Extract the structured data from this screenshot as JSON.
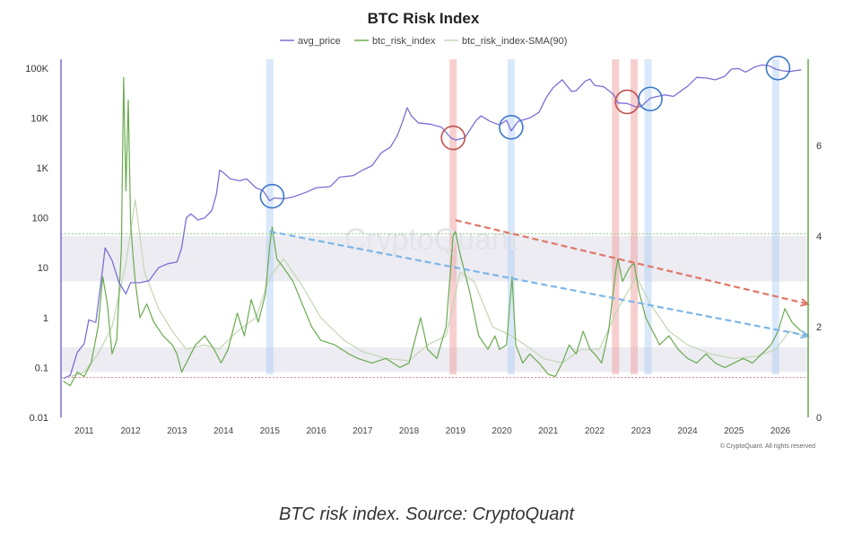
{
  "caption": "BTC risk index. Source: CryptoQuant",
  "chart_data": {
    "type": "line",
    "title": "BTC Risk Index",
    "legend": [
      {
        "name": "avg_price",
        "color": "#7b6fd6"
      },
      {
        "name": "btc_risk_index",
        "color": "#6aaa4f"
      },
      {
        "name": "btc_risk_index-SMA(90)",
        "color": "#c9d9bd"
      }
    ],
    "legend_placement": "top-center",
    "watermark": "CryptoQuant",
    "copyright": "© CryptoQuant. All rights reserved",
    "x_ticks": [
      "2011",
      "2012",
      "2013",
      "2014",
      "2015",
      "2016",
      "2017",
      "2018",
      "2019",
      "2020",
      "2021",
      "2022",
      "2023",
      "2024",
      "2025",
      "2026"
    ],
    "xlim": [
      2010.5,
      2026.6
    ],
    "y_left": {
      "scale": "log",
      "range": [
        0.01,
        150000
      ],
      "ticks": [
        0.01,
        0.1,
        1,
        10,
        100,
        1000,
        10000,
        100000
      ],
      "tick_labels": [
        "0.01",
        "0.1",
        "1",
        "10",
        "100",
        "1K",
        "10K",
        "100K"
      ]
    },
    "y_right": {
      "scale": "linear",
      "range": [
        0,
        7.9
      ],
      "ticks": [
        0,
        2,
        4,
        6
      ],
      "tick_labels": [
        "0",
        "2",
        "4",
        "6"
      ]
    },
    "bands": [
      {
        "y_from": 1.0,
        "y_to": 1.55
      },
      {
        "y_from": 3.0,
        "y_to": 4.0
      }
    ],
    "threshold_lines": [
      {
        "y": 0.88,
        "color": "#d98a8a"
      },
      {
        "y": 4.05,
        "color": "#9cc98f"
      }
    ],
    "vertical_highlights": [
      {
        "x": 2015.0,
        "color": "blue"
      },
      {
        "x": 2018.95,
        "color": "red"
      },
      {
        "x": 2020.2,
        "color": "blue"
      },
      {
        "x": 2022.45,
        "color": "red"
      },
      {
        "x": 2022.85,
        "color": "red"
      },
      {
        "x": 2023.15,
        "color": "blue"
      },
      {
        "x": 2025.9,
        "color": "blue"
      }
    ],
    "circles": [
      {
        "x": 2015.05,
        "price": 270,
        "color": "blue"
      },
      {
        "x": 2018.95,
        "price": 4000,
        "color": "red"
      },
      {
        "x": 2020.2,
        "price": 6500,
        "color": "blue"
      },
      {
        "x": 2022.7,
        "price": 21000,
        "color": "red"
      },
      {
        "x": 2023.2,
        "price": 24000,
        "color": "blue"
      },
      {
        "x": 2025.95,
        "price": 100000,
        "color": "blue"
      }
    ],
    "trend_lines": [
      {
        "color": "blue",
        "from": [
          2015.0,
          4.1
        ],
        "to": [
          2026.6,
          1.8
        ]
      },
      {
        "color": "red",
        "from": [
          2019.0,
          4.35
        ],
        "to": [
          2026.6,
          2.5
        ]
      }
    ],
    "series": [
      {
        "name": "avg_price",
        "axis": "left",
        "points": [
          [
            2010.55,
            0.06
          ],
          [
            2010.7,
            0.07
          ],
          [
            2010.85,
            0.2
          ],
          [
            2011.0,
            0.3
          ],
          [
            2011.1,
            0.9
          ],
          [
            2011.25,
            0.8
          ],
          [
            2011.4,
            10
          ],
          [
            2011.45,
            25
          ],
          [
            2011.6,
            14
          ],
          [
            2011.75,
            5
          ],
          [
            2011.9,
            3
          ],
          [
            2012.0,
            5
          ],
          [
            2012.2,
            5
          ],
          [
            2012.4,
            5.5
          ],
          [
            2012.6,
            10
          ],
          [
            2012.8,
            12
          ],
          [
            2013.0,
            13
          ],
          [
            2013.1,
            25
          ],
          [
            2013.2,
            100
          ],
          [
            2013.3,
            120
          ],
          [
            2013.45,
            90
          ],
          [
            2013.6,
            100
          ],
          [
            2013.75,
            140
          ],
          [
            2013.85,
            300
          ],
          [
            2013.92,
            900
          ],
          [
            2014.0,
            800
          ],
          [
            2014.15,
            600
          ],
          [
            2014.35,
            550
          ],
          [
            2014.5,
            600
          ],
          [
            2014.7,
            400
          ],
          [
            2014.85,
            350
          ],
          [
            2015.0,
            220
          ],
          [
            2015.1,
            250
          ],
          [
            2015.3,
            240
          ],
          [
            2015.5,
            260
          ],
          [
            2015.8,
            330
          ],
          [
            2016.0,
            400
          ],
          [
            2016.3,
            420
          ],
          [
            2016.5,
            650
          ],
          [
            2016.8,
            700
          ],
          [
            2017.0,
            900
          ],
          [
            2017.2,
            1100
          ],
          [
            2017.4,
            2000
          ],
          [
            2017.6,
            2600
          ],
          [
            2017.75,
            4500
          ],
          [
            2017.85,
            8000
          ],
          [
            2017.96,
            16000
          ],
          [
            2018.05,
            11000
          ],
          [
            2018.2,
            8000
          ],
          [
            2018.45,
            7500
          ],
          [
            2018.7,
            6500
          ],
          [
            2018.9,
            4000
          ],
          [
            2019.0,
            3600
          ],
          [
            2019.2,
            4000
          ],
          [
            2019.45,
            9000
          ],
          [
            2019.55,
            11000
          ],
          [
            2019.75,
            8500
          ],
          [
            2019.95,
            7200
          ],
          [
            2020.1,
            9000
          ],
          [
            2020.2,
            5500
          ],
          [
            2020.35,
            8500
          ],
          [
            2020.6,
            10000
          ],
          [
            2020.8,
            13000
          ],
          [
            2020.95,
            25000
          ],
          [
            2021.1,
            40000
          ],
          [
            2021.3,
            58000
          ],
          [
            2021.5,
            34000
          ],
          [
            2021.6,
            35000
          ],
          [
            2021.8,
            55000
          ],
          [
            2021.9,
            60000
          ],
          [
            2022.0,
            45000
          ],
          [
            2022.2,
            42000
          ],
          [
            2022.4,
            30000
          ],
          [
            2022.5,
            20000
          ],
          [
            2022.7,
            19500
          ],
          [
            2022.9,
            16500
          ],
          [
            2023.0,
            17000
          ],
          [
            2023.2,
            25000
          ],
          [
            2023.5,
            29000
          ],
          [
            2023.7,
            27000
          ],
          [
            2023.9,
            37000
          ],
          [
            2024.0,
            43000
          ],
          [
            2024.2,
            65000
          ],
          [
            2024.4,
            63000
          ],
          [
            2024.6,
            58000
          ],
          [
            2024.8,
            68000
          ],
          [
            2024.95,
            95000
          ],
          [
            2025.1,
            98000
          ],
          [
            2025.25,
            83000
          ],
          [
            2025.45,
            105000
          ],
          [
            2025.6,
            115000
          ],
          [
            2025.75,
            112000
          ],
          [
            2025.9,
            95000
          ],
          [
            2026.05,
            88000
          ],
          [
            2026.2,
            85000
          ],
          [
            2026.45,
            92000
          ]
        ]
      },
      {
        "name": "btc_risk_index",
        "axis": "right",
        "points": [
          [
            2010.55,
            0.8
          ],
          [
            2010.7,
            0.7
          ],
          [
            2010.85,
            1.0
          ],
          [
            2011.0,
            0.9
          ],
          [
            2011.15,
            1.2
          ],
          [
            2011.3,
            2.0
          ],
          [
            2011.4,
            3.1
          ],
          [
            2011.5,
            2.5
          ],
          [
            2011.6,
            1.4
          ],
          [
            2011.7,
            1.7
          ],
          [
            2011.8,
            3.7
          ],
          [
            2011.85,
            7.5
          ],
          [
            2011.9,
            5.0
          ],
          [
            2011.95,
            7.0
          ],
          [
            2012.0,
            4.3
          ],
          [
            2012.05,
            3.6
          ],
          [
            2012.1,
            3.0
          ],
          [
            2012.2,
            2.2
          ],
          [
            2012.35,
            2.5
          ],
          [
            2012.5,
            2.1
          ],
          [
            2012.7,
            1.8
          ],
          [
            2012.9,
            1.6
          ],
          [
            2013.0,
            1.4
          ],
          [
            2013.1,
            1.0
          ],
          [
            2013.25,
            1.3
          ],
          [
            2013.4,
            1.6
          ],
          [
            2013.6,
            1.8
          ],
          [
            2013.8,
            1.5
          ],
          [
            2013.95,
            1.2
          ],
          [
            2014.1,
            1.5
          ],
          [
            2014.3,
            2.3
          ],
          [
            2014.45,
            1.8
          ],
          [
            2014.6,
            2.6
          ],
          [
            2014.75,
            2.1
          ],
          [
            2014.9,
            2.7
          ],
          [
            2015.0,
            3.8
          ],
          [
            2015.05,
            4.2
          ],
          [
            2015.15,
            3.5
          ],
          [
            2015.3,
            3.3
          ],
          [
            2015.5,
            3.0
          ],
          [
            2015.7,
            2.5
          ],
          [
            2015.9,
            2.0
          ],
          [
            2016.1,
            1.7
          ],
          [
            2016.4,
            1.6
          ],
          [
            2016.7,
            1.4
          ],
          [
            2016.9,
            1.3
          ],
          [
            2017.2,
            1.2
          ],
          [
            2017.5,
            1.3
          ],
          [
            2017.8,
            1.1
          ],
          [
            2018.0,
            1.2
          ],
          [
            2018.1,
            1.6
          ],
          [
            2018.25,
            2.2
          ],
          [
            2018.4,
            1.5
          ],
          [
            2018.6,
            1.3
          ],
          [
            2018.8,
            2.0
          ],
          [
            2018.95,
            4.0
          ],
          [
            2019.0,
            4.1
          ],
          [
            2019.1,
            3.6
          ],
          [
            2019.3,
            2.8
          ],
          [
            2019.5,
            1.8
          ],
          [
            2019.7,
            1.5
          ],
          [
            2019.85,
            1.8
          ],
          [
            2019.95,
            1.5
          ],
          [
            2020.1,
            1.6
          ],
          [
            2020.22,
            3.1
          ],
          [
            2020.3,
            1.6
          ],
          [
            2020.45,
            1.2
          ],
          [
            2020.6,
            1.4
          ],
          [
            2020.8,
            1.2
          ],
          [
            2021.0,
            0.95
          ],
          [
            2021.15,
            0.9
          ],
          [
            2021.3,
            1.2
          ],
          [
            2021.45,
            1.6
          ],
          [
            2021.6,
            1.4
          ],
          [
            2021.75,
            1.9
          ],
          [
            2021.9,
            1.5
          ],
          [
            2022.0,
            1.4
          ],
          [
            2022.15,
            1.2
          ],
          [
            2022.3,
            1.9
          ],
          [
            2022.45,
            3.2
          ],
          [
            2022.5,
            3.5
          ],
          [
            2022.6,
            3.0
          ],
          [
            2022.75,
            3.3
          ],
          [
            2022.85,
            3.4
          ],
          [
            2022.95,
            2.8
          ],
          [
            2023.1,
            2.2
          ],
          [
            2023.25,
            1.9
          ],
          [
            2023.4,
            1.6
          ],
          [
            2023.6,
            1.8
          ],
          [
            2023.8,
            1.5
          ],
          [
            2024.0,
            1.3
          ],
          [
            2024.2,
            1.2
          ],
          [
            2024.4,
            1.4
          ],
          [
            2024.6,
            1.2
          ],
          [
            2024.8,
            1.1
          ],
          [
            2025.0,
            1.2
          ],
          [
            2025.2,
            1.3
          ],
          [
            2025.4,
            1.2
          ],
          [
            2025.6,
            1.4
          ],
          [
            2025.8,
            1.6
          ],
          [
            2025.95,
            1.9
          ],
          [
            2026.1,
            2.4
          ],
          [
            2026.25,
            2.1
          ],
          [
            2026.45,
            1.9
          ]
        ]
      },
      {
        "name": "btc_risk_index-SMA(90)",
        "axis": "right",
        "points": [
          [
            2010.7,
            0.9
          ],
          [
            2011.0,
            1.0
          ],
          [
            2011.3,
            1.4
          ],
          [
            2011.6,
            2.0
          ],
          [
            2011.9,
            3.4
          ],
          [
            2012.1,
            4.8
          ],
          [
            2012.3,
            3.2
          ],
          [
            2012.6,
            2.4
          ],
          [
            2012.9,
            1.9
          ],
          [
            2013.2,
            1.5
          ],
          [
            2013.6,
            1.6
          ],
          [
            2013.9,
            1.5
          ],
          [
            2014.3,
            1.9
          ],
          [
            2014.7,
            2.2
          ],
          [
            2015.0,
            3.1
          ],
          [
            2015.3,
            3.5
          ],
          [
            2015.7,
            2.9
          ],
          [
            2016.1,
            2.2
          ],
          [
            2016.6,
            1.7
          ],
          [
            2017.0,
            1.45
          ],
          [
            2017.5,
            1.3
          ],
          [
            2018.0,
            1.25
          ],
          [
            2018.4,
            1.6
          ],
          [
            2018.8,
            1.8
          ],
          [
            2019.1,
            3.2
          ],
          [
            2019.4,
            3.0
          ],
          [
            2019.8,
            2.0
          ],
          [
            2020.2,
            1.8
          ],
          [
            2020.5,
            1.6
          ],
          [
            2020.9,
            1.3
          ],
          [
            2021.3,
            1.2
          ],
          [
            2021.7,
            1.5
          ],
          [
            2022.1,
            1.5
          ],
          [
            2022.5,
            2.4
          ],
          [
            2022.9,
            3.1
          ],
          [
            2023.2,
            2.5
          ],
          [
            2023.6,
            1.9
          ],
          [
            2024.0,
            1.6
          ],
          [
            2024.5,
            1.4
          ],
          [
            2025.0,
            1.3
          ],
          [
            2025.5,
            1.35
          ],
          [
            2025.9,
            1.5
          ],
          [
            2026.2,
            1.9
          ],
          [
            2026.5,
            1.8
          ]
        ]
      }
    ]
  }
}
